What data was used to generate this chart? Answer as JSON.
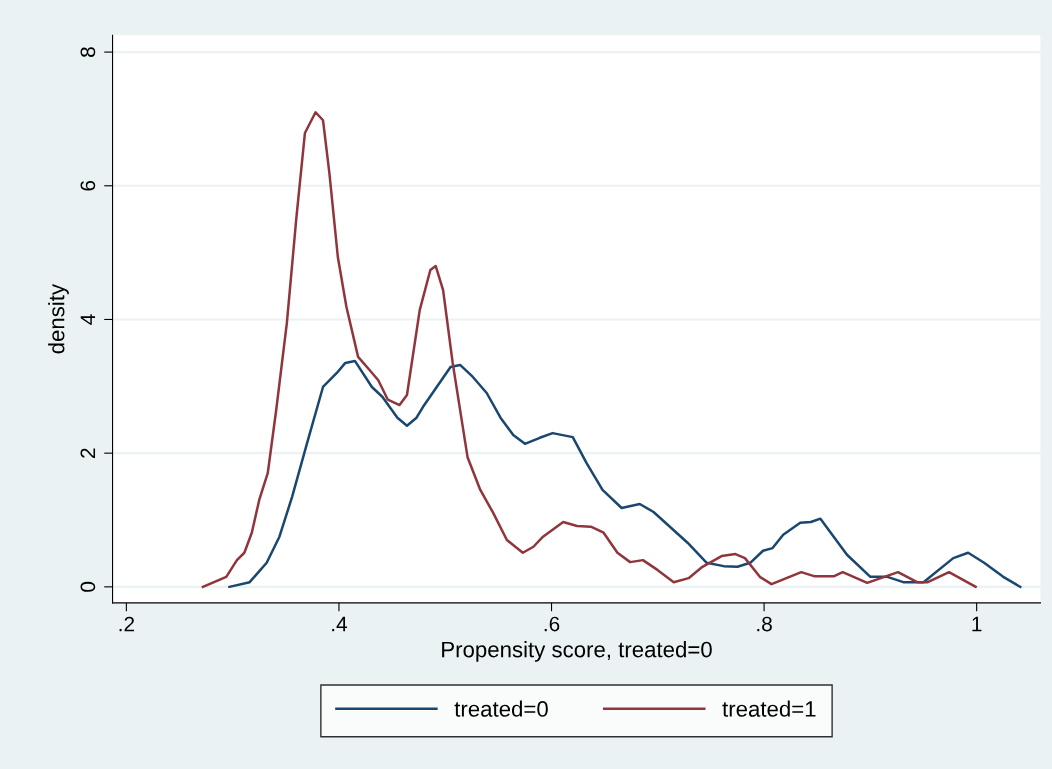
{
  "chart_data": {
    "type": "line",
    "xlabel": "Propensity score, treated=0",
    "ylabel": "density",
    "xlim": [
      0.187,
      1.06
    ],
    "ylim": [
      -0.24,
      8.25
    ],
    "xticks": [
      {
        "value": 0.2,
        "label": ".2"
      },
      {
        "value": 0.4,
        "label": ".4"
      },
      {
        "value": 0.6,
        "label": ".6"
      },
      {
        "value": 0.8,
        "label": ".8"
      },
      {
        "value": 1,
        "label": "1"
      }
    ],
    "yticks": [
      0,
      2,
      4,
      6,
      8
    ],
    "grid": "y",
    "legend": "bottom",
    "marker": "none",
    "line_style": "solid",
    "series": [
      {
        "name": "treated=0",
        "color": "#1a476f",
        "x": [
          0.297,
          0.316,
          0.332,
          0.344,
          0.356,
          0.37,
          0.385,
          0.398,
          0.406,
          0.415,
          0.431,
          0.441,
          0.455,
          0.464,
          0.473,
          0.479,
          0.492,
          0.505,
          0.514,
          0.526,
          0.539,
          0.552,
          0.564,
          0.575,
          0.589,
          0.601,
          0.62,
          0.633,
          0.648,
          0.666,
          0.683,
          0.696,
          0.728,
          0.746,
          0.762,
          0.775,
          0.787,
          0.799,
          0.808,
          0.818,
          0.834,
          0.844,
          0.853,
          0.878,
          0.9,
          0.916,
          0.931,
          0.95,
          0.978,
          0.992,
          1.007,
          1.025,
          1.041
        ],
        "values": [
          0,
          0.07,
          0.36,
          0.75,
          1.35,
          2.15,
          2.99,
          3.2,
          3.35,
          3.38,
          2.99,
          2.84,
          2.53,
          2.41,
          2.53,
          2.69,
          2.99,
          3.29,
          3.32,
          3.14,
          2.9,
          2.53,
          2.27,
          2.14,
          2.23,
          2.3,
          2.24,
          1.85,
          1.45,
          1.18,
          1.24,
          1.12,
          0.66,
          0.36,
          0.31,
          0.3,
          0.36,
          0.54,
          0.58,
          0.78,
          0.96,
          0.97,
          1.02,
          0.48,
          0.15,
          0.15,
          0.07,
          0.07,
          0.43,
          0.51,
          0.36,
          0.15,
          0
        ]
      },
      {
        "name": "treated=1",
        "color": "#90353b",
        "x": [
          0.272,
          0.294,
          0.304,
          0.311,
          0.318,
          0.325,
          0.333,
          0.341,
          0.351,
          0.36,
          0.368,
          0.378,
          0.385,
          0.391,
          0.399,
          0.407,
          0.418,
          0.429,
          0.437,
          0.446,
          0.457,
          0.464,
          0.476,
          0.486,
          0.491,
          0.498,
          0.507,
          0.521,
          0.533,
          0.545,
          0.558,
          0.573,
          0.583,
          0.592,
          0.611,
          0.624,
          0.637,
          0.649,
          0.662,
          0.674,
          0.686,
          0.7,
          0.715,
          0.729,
          0.742,
          0.76,
          0.773,
          0.782,
          0.796,
          0.807,
          0.835,
          0.847,
          0.866,
          0.874,
          0.897,
          0.926,
          0.944,
          0.954,
          0.974,
          0.999
        ],
        "values": [
          0,
          0.15,
          0.4,
          0.51,
          0.81,
          1.3,
          1.7,
          2.65,
          3.95,
          5.53,
          6.79,
          7.1,
          6.98,
          6.19,
          4.93,
          4.19,
          3.44,
          3.24,
          3.09,
          2.8,
          2.72,
          2.87,
          4.14,
          4.74,
          4.8,
          4.44,
          3.35,
          1.94,
          1.45,
          1.11,
          0.7,
          0.51,
          0.6,
          0.75,
          0.97,
          0.91,
          0.9,
          0.81,
          0.51,
          0.37,
          0.4,
          0.25,
          0.07,
          0.13,
          0.3,
          0.46,
          0.49,
          0.43,
          0.15,
          0.04,
          0.22,
          0.16,
          0.16,
          0.22,
          0.06,
          0.22,
          0.07,
          0.07,
          0.22,
          0
        ]
      }
    ]
  }
}
